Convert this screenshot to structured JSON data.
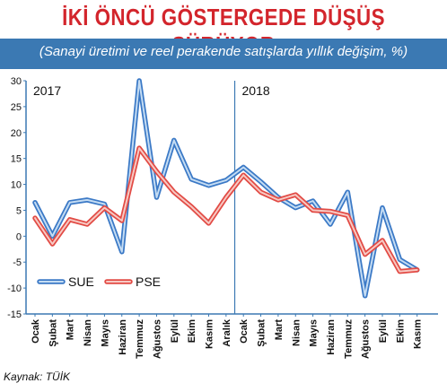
{
  "header": {
    "title": "İKİ ÖNCÜ GÖSTERGEDE DÜŞÜŞ SÜRÜYOR",
    "subtitle": "(Sanayi üretimi ve reel perakende satışlarda yıllık değişim, %)"
  },
  "footer": {
    "source": "Kaynak: TÜİK"
  },
  "colors": {
    "sue": "#3b79c6",
    "pse": "#e24b45",
    "band": "#3b79b3",
    "title": "#d3252c"
  },
  "chart_data": {
    "type": "line",
    "title": "İKİ ÖNCÜ GÖSTERGEDE DÜŞÜŞ SÜRÜYOR",
    "subtitle": "(Sanayi üretimi ve reel perakende satışlarda yıllık değişim, %)",
    "xlabel": "",
    "ylabel": "",
    "ylim": [
      -15,
      30
    ],
    "yticks": [
      30,
      25,
      20,
      15,
      10,
      5,
      0,
      -5,
      -10,
      -15
    ],
    "grid": false,
    "legend": "bottom-left",
    "year_labels": [
      "2017",
      "2018"
    ],
    "categories": [
      "Ocak",
      "Şubat",
      "Mart",
      "Nisan",
      "Mayıs",
      "Haziran",
      "Temmuz",
      "Ağustos",
      "Eylül",
      "Ekim",
      "Kasım",
      "Aralık",
      "Ocak",
      "Şubat",
      "Mart",
      "Nisan",
      "Mayıs",
      "Haziran",
      "Temmuz",
      "Ağustos",
      "Eylül",
      "Ekim",
      "Kasım"
    ],
    "series": [
      {
        "name": "SUE",
        "values": [
          6.5,
          0,
          6.5,
          7,
          6.2,
          -3,
          30,
          7.5,
          18.5,
          11,
          9.8,
          10.8,
          13.3,
          10.5,
          7.5,
          5.5,
          6.8,
          2.3,
          8.5,
          -11.5,
          5.5,
          -4.5,
          -6.5
        ]
      },
      {
        "name": "PSE",
        "values": [
          3.5,
          -1.5,
          3.2,
          2.3,
          5.5,
          3,
          17,
          12.5,
          8.5,
          5.7,
          2.5,
          7.5,
          11.8,
          8.5,
          7,
          8,
          5,
          4.8,
          4,
          -3.5,
          -0.8,
          -6.8,
          -6.5
        ]
      }
    ]
  }
}
